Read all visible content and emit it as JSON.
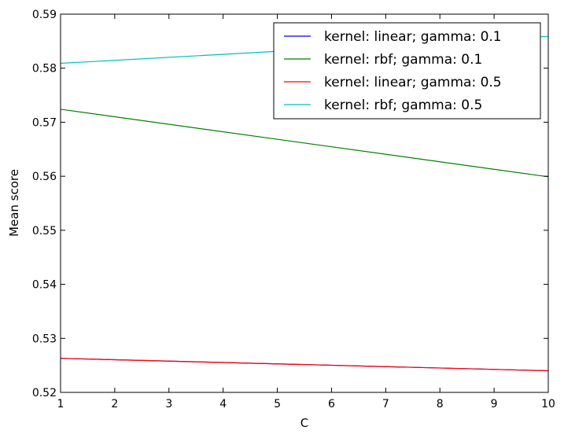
{
  "chart_data": {
    "type": "line",
    "title": "",
    "xlabel": "C",
    "ylabel": "Mean score",
    "xlim": [
      1,
      10
    ],
    "ylim": [
      0.52,
      0.59
    ],
    "x_ticks": [
      1,
      2,
      3,
      4,
      5,
      6,
      7,
      8,
      9,
      10
    ],
    "y_ticks": [
      "0.52",
      "0.53",
      "0.54",
      "0.55",
      "0.56",
      "0.57",
      "0.58",
      "0.59"
    ],
    "x": [
      1,
      10
    ],
    "grid": false,
    "legend_position": "top-right",
    "series": [
      {
        "name": "kernel: linear; gamma: 0.1",
        "color": "#0000ff",
        "values": [
          0.5263,
          0.524
        ]
      },
      {
        "name": "kernel: rbf; gamma: 0.1",
        "color": "#008000",
        "values": [
          0.5724,
          0.5599
        ]
      },
      {
        "name": "kernel: linear; gamma: 0.5",
        "color": "#ff0000",
        "values": [
          0.5263,
          0.524
        ]
      },
      {
        "name": "kernel: rbf; gamma: 0.5",
        "color": "#00bfbf",
        "values": [
          0.5809,
          0.5859
        ]
      }
    ]
  }
}
